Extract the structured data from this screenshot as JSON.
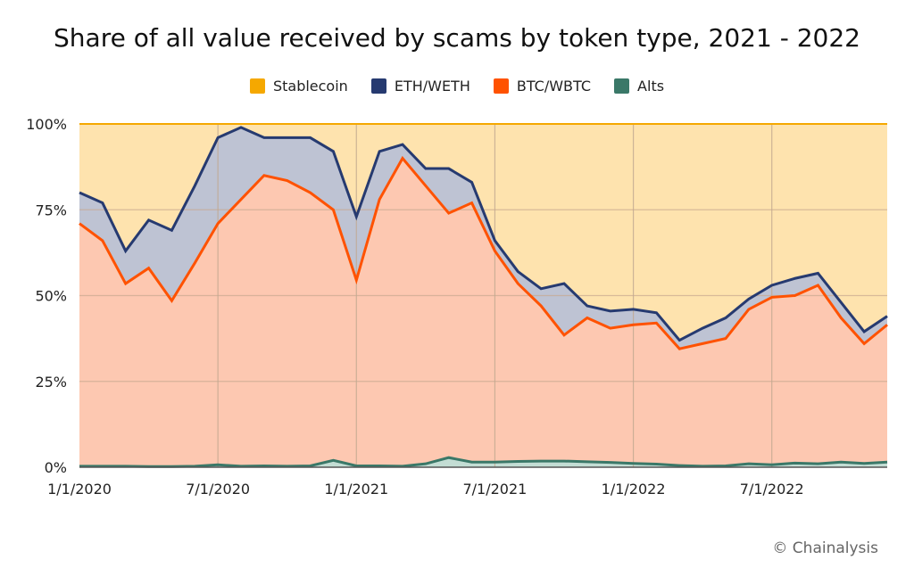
{
  "chart_data": {
    "type": "area",
    "stacked": true,
    "title": "Share of all value received by scams by token type, 2021 - 2022",
    "xlabel": "",
    "ylabel": "",
    "ylim": [
      0,
      100
    ],
    "yticks": [
      "0%",
      "25%",
      "50%",
      "75%",
      "100%"
    ],
    "xticks": [
      "1/1/2020",
      "7/1/2020",
      "1/1/2021",
      "7/1/2021",
      "1/1/2022",
      "7/1/2022"
    ],
    "x_start": "1/1/2020",
    "x_end": "12/1/2022",
    "x_interval": "monthly",
    "legend_position": "top",
    "grid": true,
    "series": [
      {
        "name": "Alts",
        "color": "#3a7868",
        "fill": "#c3ddd4",
        "values": [
          0.3,
          0.3,
          0.3,
          0.2,
          0.2,
          0.3,
          0.7,
          0.3,
          0.4,
          0.3,
          0.4,
          2,
          0.4,
          0.4,
          0.3,
          1,
          2.8,
          1.5,
          1.5,
          1.7,
          1.8,
          1.8,
          1.6,
          1.4,
          1.1,
          0.9,
          0.5,
          0.3,
          0.4,
          1,
          0.7,
          1.2,
          1,
          1.5,
          1.1,
          1.5
        ]
      },
      {
        "name": "BTC/WBTC",
        "color": "#ff5200",
        "fill": "#fdc8b1",
        "values": [
          70.7,
          65.7,
          53.2,
          57.8,
          48.3,
          59.2,
          70.3,
          77.7,
          84.6,
          83.2,
          79.6,
          73,
          54.1,
          77.6,
          89.7,
          81,
          71.2,
          75.5,
          61.5,
          51.8,
          45.2,
          36.7,
          41.9,
          39.1,
          40.4,
          41.1,
          34,
          35.7,
          37.1,
          45,
          48.8,
          48.8,
          52,
          42,
          34.9,
          40
        ]
      },
      {
        "name": "ETH/WETH",
        "color": "#263a70",
        "fill": "#bec3d3",
        "values": [
          9,
          11,
          9.5,
          14,
          20.5,
          22.5,
          25,
          21,
          11,
          12.5,
          16,
          17,
          18.5,
          14,
          4,
          5,
          13,
          6,
          3,
          3.5,
          5,
          15,
          3.5,
          5,
          4.5,
          3,
          2.5,
          4.5,
          6,
          3,
          3.5,
          5,
          3.5,
          4.5,
          3.5,
          2.5
        ]
      },
      {
        "name": "Stablecoin",
        "color": "#f5a800",
        "fill": "#fee3ae",
        "values": [
          20,
          23,
          37,
          28,
          31,
          18,
          4,
          1,
          4,
          4,
          4,
          8,
          27,
          8,
          6,
          13,
          13,
          17,
          34,
          43,
          48,
          46.5,
          53,
          54.5,
          54,
          55,
          63,
          59.5,
          56.5,
          51,
          47,
          45,
          43.5,
          52,
          60.5,
          56
        ]
      }
    ],
    "legend": [
      {
        "name": "Stablecoin",
        "color": "#f5a800"
      },
      {
        "name": "ETH/WETH",
        "color": "#263a70"
      },
      {
        "name": "BTC/WBTC",
        "color": "#ff5200"
      },
      {
        "name": "Alts",
        "color": "#3a7868"
      }
    ]
  },
  "credit": "© Chainalysis"
}
